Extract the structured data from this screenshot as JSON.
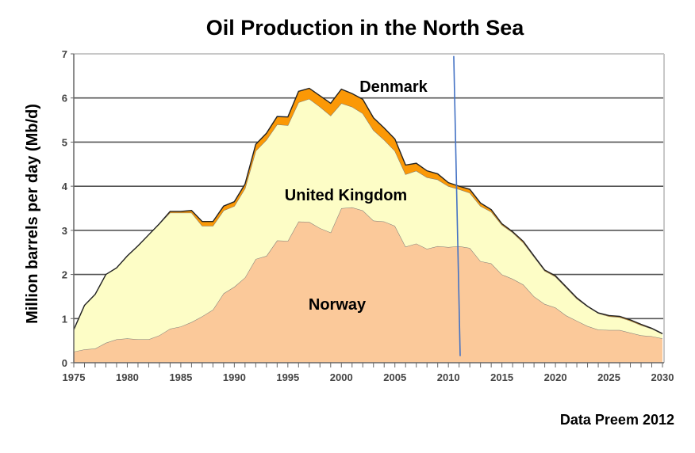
{
  "chart_data": {
    "type": "area",
    "stacked": true,
    "title": "Oil Production in the North Sea",
    "xlabel": "",
    "ylabel": "Million barrels per day  (Mb/d)",
    "source": "Data Preem 2012",
    "xlim": [
      1975,
      2030
    ],
    "ylim": [
      0,
      7
    ],
    "x_ticks": [
      "1975",
      "1980",
      "1985",
      "1990",
      "1995",
      "2000",
      "2005",
      "2010",
      "2015",
      "2020",
      "2025",
      "2030"
    ],
    "y_ticks": [
      "0",
      "1",
      "2",
      "3",
      "4",
      "5",
      "6",
      "7"
    ],
    "grid": true,
    "x": [
      1975,
      1976,
      1977,
      1978,
      1979,
      1980,
      1981,
      1982,
      1983,
      1984,
      1985,
      1986,
      1987,
      1988,
      1989,
      1990,
      1991,
      1992,
      1993,
      1994,
      1995,
      1996,
      1997,
      1998,
      1999,
      2000,
      2001,
      2002,
      2003,
      2004,
      2005,
      2006,
      2007,
      2008,
      2009,
      2010,
      2011,
      2012,
      2013,
      2014,
      2015,
      2016,
      2017,
      2018,
      2019,
      2020,
      2021,
      2022,
      2023,
      2024,
      2025,
      2026,
      2027,
      2028,
      2029,
      2030
    ],
    "series": [
      {
        "name": "Norway",
        "color": "#fbc99a",
        "values": [
          0.25,
          0.3,
          0.32,
          0.45,
          0.53,
          0.55,
          0.53,
          0.53,
          0.62,
          0.77,
          0.82,
          0.92,
          1.05,
          1.2,
          1.57,
          1.72,
          1.93,
          2.35,
          2.42,
          2.77,
          2.76,
          3.2,
          3.19,
          3.05,
          2.95,
          3.5,
          3.52,
          3.45,
          3.22,
          3.2,
          3.1,
          2.63,
          2.7,
          2.58,
          2.64,
          2.62,
          2.64,
          2.6,
          2.3,
          2.25,
          2.0,
          1.9,
          1.77,
          1.5,
          1.33,
          1.25,
          1.07,
          0.95,
          0.83,
          0.75,
          0.74,
          0.74,
          0.68,
          0.62,
          0.6,
          0.55
        ]
      },
      {
        "name": "United Kingdom",
        "color": "#fdfdc6",
        "values": [
          0.5,
          1.0,
          1.23,
          1.55,
          1.62,
          1.87,
          2.12,
          2.37,
          2.53,
          2.63,
          2.58,
          2.48,
          2.05,
          1.9,
          1.88,
          1.83,
          2.02,
          2.45,
          2.63,
          2.63,
          2.62,
          2.7,
          2.79,
          2.75,
          2.65,
          2.38,
          2.28,
          2.2,
          2.05,
          1.85,
          1.7,
          1.64,
          1.65,
          1.62,
          1.51,
          1.38,
          1.29,
          1.25,
          1.25,
          1.17,
          1.12,
          1.05,
          0.95,
          0.9,
          0.75,
          0.7,
          0.63,
          0.5,
          0.44,
          0.37,
          0.31,
          0.29,
          0.27,
          0.23,
          0.17,
          0.1
        ]
      },
      {
        "name": "Denmark",
        "color": "#fb9806",
        "values": [
          0,
          0,
          0,
          0,
          0,
          0,
          0,
          0,
          0,
          0.03,
          0.03,
          0.05,
          0.1,
          0.1,
          0.1,
          0.1,
          0.1,
          0.15,
          0.15,
          0.18,
          0.19,
          0.25,
          0.24,
          0.25,
          0.28,
          0.32,
          0.3,
          0.32,
          0.28,
          0.27,
          0.27,
          0.21,
          0.17,
          0.15,
          0.13,
          0.08,
          0.07,
          0.08,
          0.07,
          0.05,
          0.03,
          0.02,
          0.03,
          0.02,
          0.02,
          0.02,
          0.02,
          0.02,
          0.01,
          0.01,
          0.02,
          0.02,
          0.02,
          0.02,
          0.01,
          0.01
        ]
      }
    ],
    "vertical_marker": {
      "color": "#4472c4",
      "x_top": 2010.5,
      "x_bottom": 2011.1,
      "y_top": 6.95,
      "y_bottom": 0.15
    }
  }
}
